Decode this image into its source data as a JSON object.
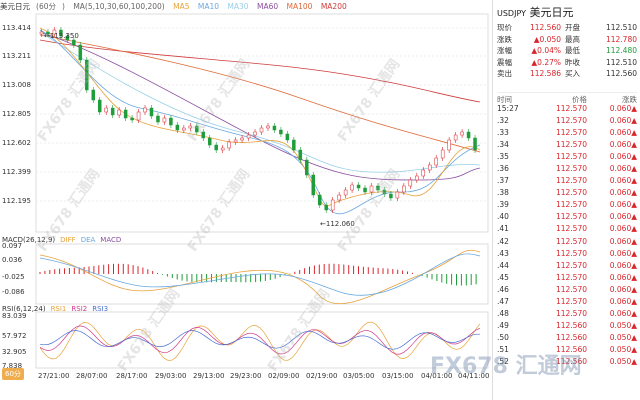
{
  "main": {
    "title": "美元日元",
    "period": "60分",
    "ma_label": "MA(5,10,30,60,100,200)",
    "ma_lines": [
      "MA5",
      "MA10",
      "MA30",
      "MA60",
      "MA100",
      "MA200"
    ],
    "y_ticks": [
      "113.414",
      "113.211",
      "113.008",
      "112.805",
      "112.602",
      "112.399",
      "112.195"
    ],
    "high_label": "113.350",
    "low_label": "112.060"
  },
  "macd": {
    "label": "MACD(26,12,9)",
    "diff": "DIFF",
    "dea": "DEA",
    "macd": "MACD",
    "y_ticks": [
      "0.097",
      "0.036",
      "-0.025",
      "-0.086"
    ]
  },
  "rsi": {
    "label": "RSI(6,12,24)",
    "rsi1": "RSI1",
    "rsi2": "RSI2",
    "rsi3": "RSI3",
    "y_ticks": [
      "83.039",
      "57.972",
      "32.905",
      "7.838"
    ]
  },
  "x_ticks": [
    "27/21:00",
    "28/07:00",
    "28/17:00",
    "29/03:00",
    "29/13:00",
    "29/23:00",
    "02/09:00",
    "02/19:00",
    "03/05:00",
    "03/15:00",
    "04/01:00",
    "04/11:00"
  ],
  "period_button": "60分",
  "watermark": "FX678 汇通网",
  "side": {
    "symbol": "USDJPY",
    "name": "美元日元",
    "quote": [
      {
        "k": "现价",
        "v": "112.560",
        "k2": "开盘",
        "v2": "112.510",
        "vc": "up",
        "v2c": "normal"
      },
      {
        "k": "涨跌",
        "v": "▲0.050",
        "k2": "最高",
        "v2": "112.780",
        "vc": "up",
        "v2c": "up"
      },
      {
        "k": "涨幅",
        "v": "▲0.04%",
        "k2": "最低",
        "v2": "112.480",
        "vc": "up",
        "v2c": "green"
      },
      {
        "k": "震幅",
        "v": "▲0.27%",
        "k2": "昨收",
        "v2": "112.510",
        "vc": "up",
        "v2c": "normal"
      },
      {
        "k": "卖出",
        "v": "112.586",
        "k2": "买入",
        "v2": "112.560",
        "vc": "up",
        "v2c": "normal"
      }
    ],
    "tick_header": [
      "时间",
      "价格",
      "涨跌"
    ],
    "ticks": [
      {
        "t": "15:27",
        "p": "112.570",
        "c": "0.060▲"
      },
      {
        "t": ".32",
        "p": "112.570",
        "c": "0.060▲"
      },
      {
        "t": ".33",
        "p": "112.570",
        "c": "0.060▲"
      },
      {
        "t": ".34",
        "p": "112.570",
        "c": "0.060▲"
      },
      {
        "t": ".35",
        "p": "112.570",
        "c": "0.060▲"
      },
      {
        "t": ".36",
        "p": "112.570",
        "c": "0.060▲"
      },
      {
        "t": ".37",
        "p": "112.570",
        "c": "0.060▲"
      },
      {
        "t": ".38",
        "p": "112.570",
        "c": "0.060▲"
      },
      {
        "t": ".39",
        "p": "112.570",
        "c": "0.060▲"
      },
      {
        "t": ".40",
        "p": "112.570",
        "c": "0.060▲"
      },
      {
        "t": ".41",
        "p": "112.570",
        "c": "0.060▲"
      },
      {
        "t": ".42",
        "p": "112.570",
        "c": "0.060▲"
      },
      {
        "t": ".43",
        "p": "112.570",
        "c": "0.060▲"
      },
      {
        "t": ".44",
        "p": "112.570",
        "c": "0.060▲"
      },
      {
        "t": ".45",
        "p": "112.570",
        "c": "0.060▲"
      },
      {
        "t": ".46",
        "p": "112.570",
        "c": "0.060▲"
      },
      {
        "t": ".47",
        "p": "112.570",
        "c": "0.060▲"
      },
      {
        "t": ".48",
        "p": "112.570",
        "c": "0.060▲"
      },
      {
        "t": ".49",
        "p": "112.560",
        "c": "0.050▲"
      },
      {
        "t": ".50",
        "p": "112.560",
        "c": "0.050▲"
      },
      {
        "t": ".51",
        "p": "112.560",
        "c": "0.050▲"
      },
      {
        "t": ".52",
        "p": "112.560",
        "c": "0.050▲"
      }
    ]
  },
  "corner_logo": "FX678 汇通网"
}
